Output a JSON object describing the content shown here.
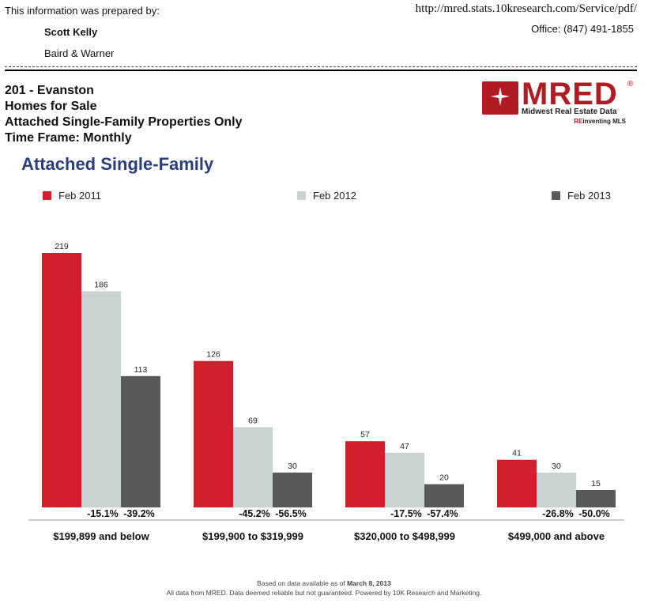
{
  "header": {
    "prepared_by_label": "This information was prepared by:",
    "agent_name": "Scott Kelly",
    "company": "Baird & Warner",
    "url": "http://mred.stats.10kresearch.com/Service/pdf/",
    "office": "Office: (847) 491-1855"
  },
  "report": {
    "line1": "201 - Evanston",
    "line2": "Homes for Sale",
    "line3": "Attached Single-Family Properties Only",
    "line4": "Time Frame: Monthly"
  },
  "logo": {
    "text": "MRED",
    "reg": "®",
    "subtitle": "Midwest Real Estate Data",
    "tagline_re": "RE",
    "tagline_rest": "inventing MLS"
  },
  "colors": {
    "feb2011": "#d21f2b",
    "feb2012": "#c9d3d1",
    "feb2013": "#58595b",
    "title": "#2a3f7a"
  },
  "chart_data": {
    "type": "bar",
    "title": "Attached Single-Family",
    "categories": [
      "$199,899 and below",
      "$199,900 to $319,999",
      "$320,000 to $498,999",
      "$499,000 and above"
    ],
    "series": [
      {
        "name": "Feb 2011",
        "values": [
          219,
          126,
          57,
          41
        ]
      },
      {
        "name": "Feb 2012",
        "values": [
          186,
          69,
          47,
          30
        ]
      },
      {
        "name": "Feb 2013",
        "values": [
          113,
          30,
          20,
          15
        ]
      }
    ],
    "changes_2012": [
      "-15.1%",
      "-45.2%",
      "-17.5%",
      "-26.8%"
    ],
    "changes_2013": [
      "-39.2%",
      "-56.5%",
      "-57.4%",
      "-50.0%"
    ],
    "ylim": [
      0,
      219
    ],
    "legend_position": "top"
  },
  "footer": {
    "line1_prefix": "Based on data available as of ",
    "line1_date": "March 8, 2013",
    "line2": "All data from MRED. Data deemed reliable but not guaranteed. Powered by 10K Research and Marketing."
  }
}
